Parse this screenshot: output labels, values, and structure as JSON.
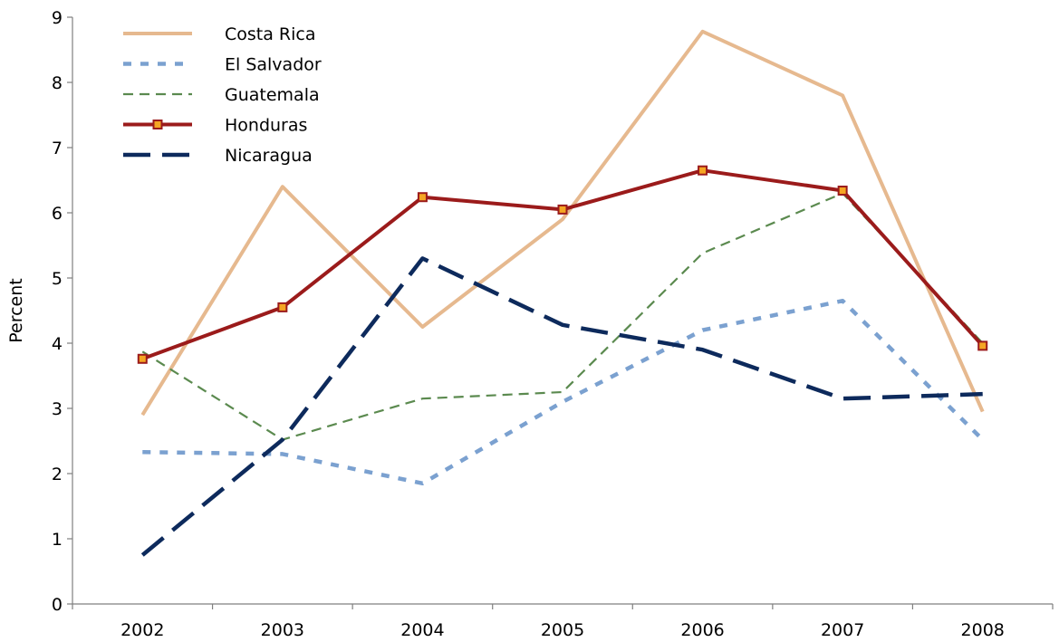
{
  "chart_data": {
    "type": "line",
    "title": "",
    "xlabel": "",
    "ylabel": "Percent",
    "categories": [
      "2002",
      "2003",
      "2004",
      "2005",
      "2006",
      "2007",
      "2008"
    ],
    "ylim": [
      0,
      9
    ],
    "yticks": [
      "0",
      "1",
      "2",
      "3",
      "4",
      "5",
      "6",
      "7",
      "8",
      "9"
    ],
    "grid": false,
    "legend_position": "top-left",
    "series": [
      {
        "name": "Costa Rica",
        "values": [
          2.9,
          6.4,
          4.25,
          5.9,
          8.78,
          7.8,
          2.95
        ],
        "color": "#e6b98f",
        "style": "solid",
        "marker": "none"
      },
      {
        "name": "El Salvador",
        "values": [
          2.33,
          2.3,
          1.85,
          3.1,
          4.2,
          4.65,
          2.52
        ],
        "color": "#7ba1d0",
        "style": "dotted",
        "marker": "none"
      },
      {
        "name": "Guatemala",
        "values": [
          3.87,
          2.52,
          3.15,
          3.25,
          5.38,
          6.3,
          4.0
        ],
        "color": "#5b8a4f",
        "style": "dashed",
        "marker": "none"
      },
      {
        "name": "Honduras",
        "values": [
          3.76,
          4.55,
          6.24,
          6.05,
          6.65,
          6.34,
          3.96
        ],
        "color": "#9b1b1b",
        "style": "solid",
        "marker": "square"
      },
      {
        "name": "Nicaragua",
        "values": [
          0.75,
          2.52,
          5.3,
          4.28,
          3.9,
          3.15,
          3.22
        ],
        "color": "#0d2a5c",
        "style": "longdash",
        "marker": "none"
      }
    ]
  }
}
